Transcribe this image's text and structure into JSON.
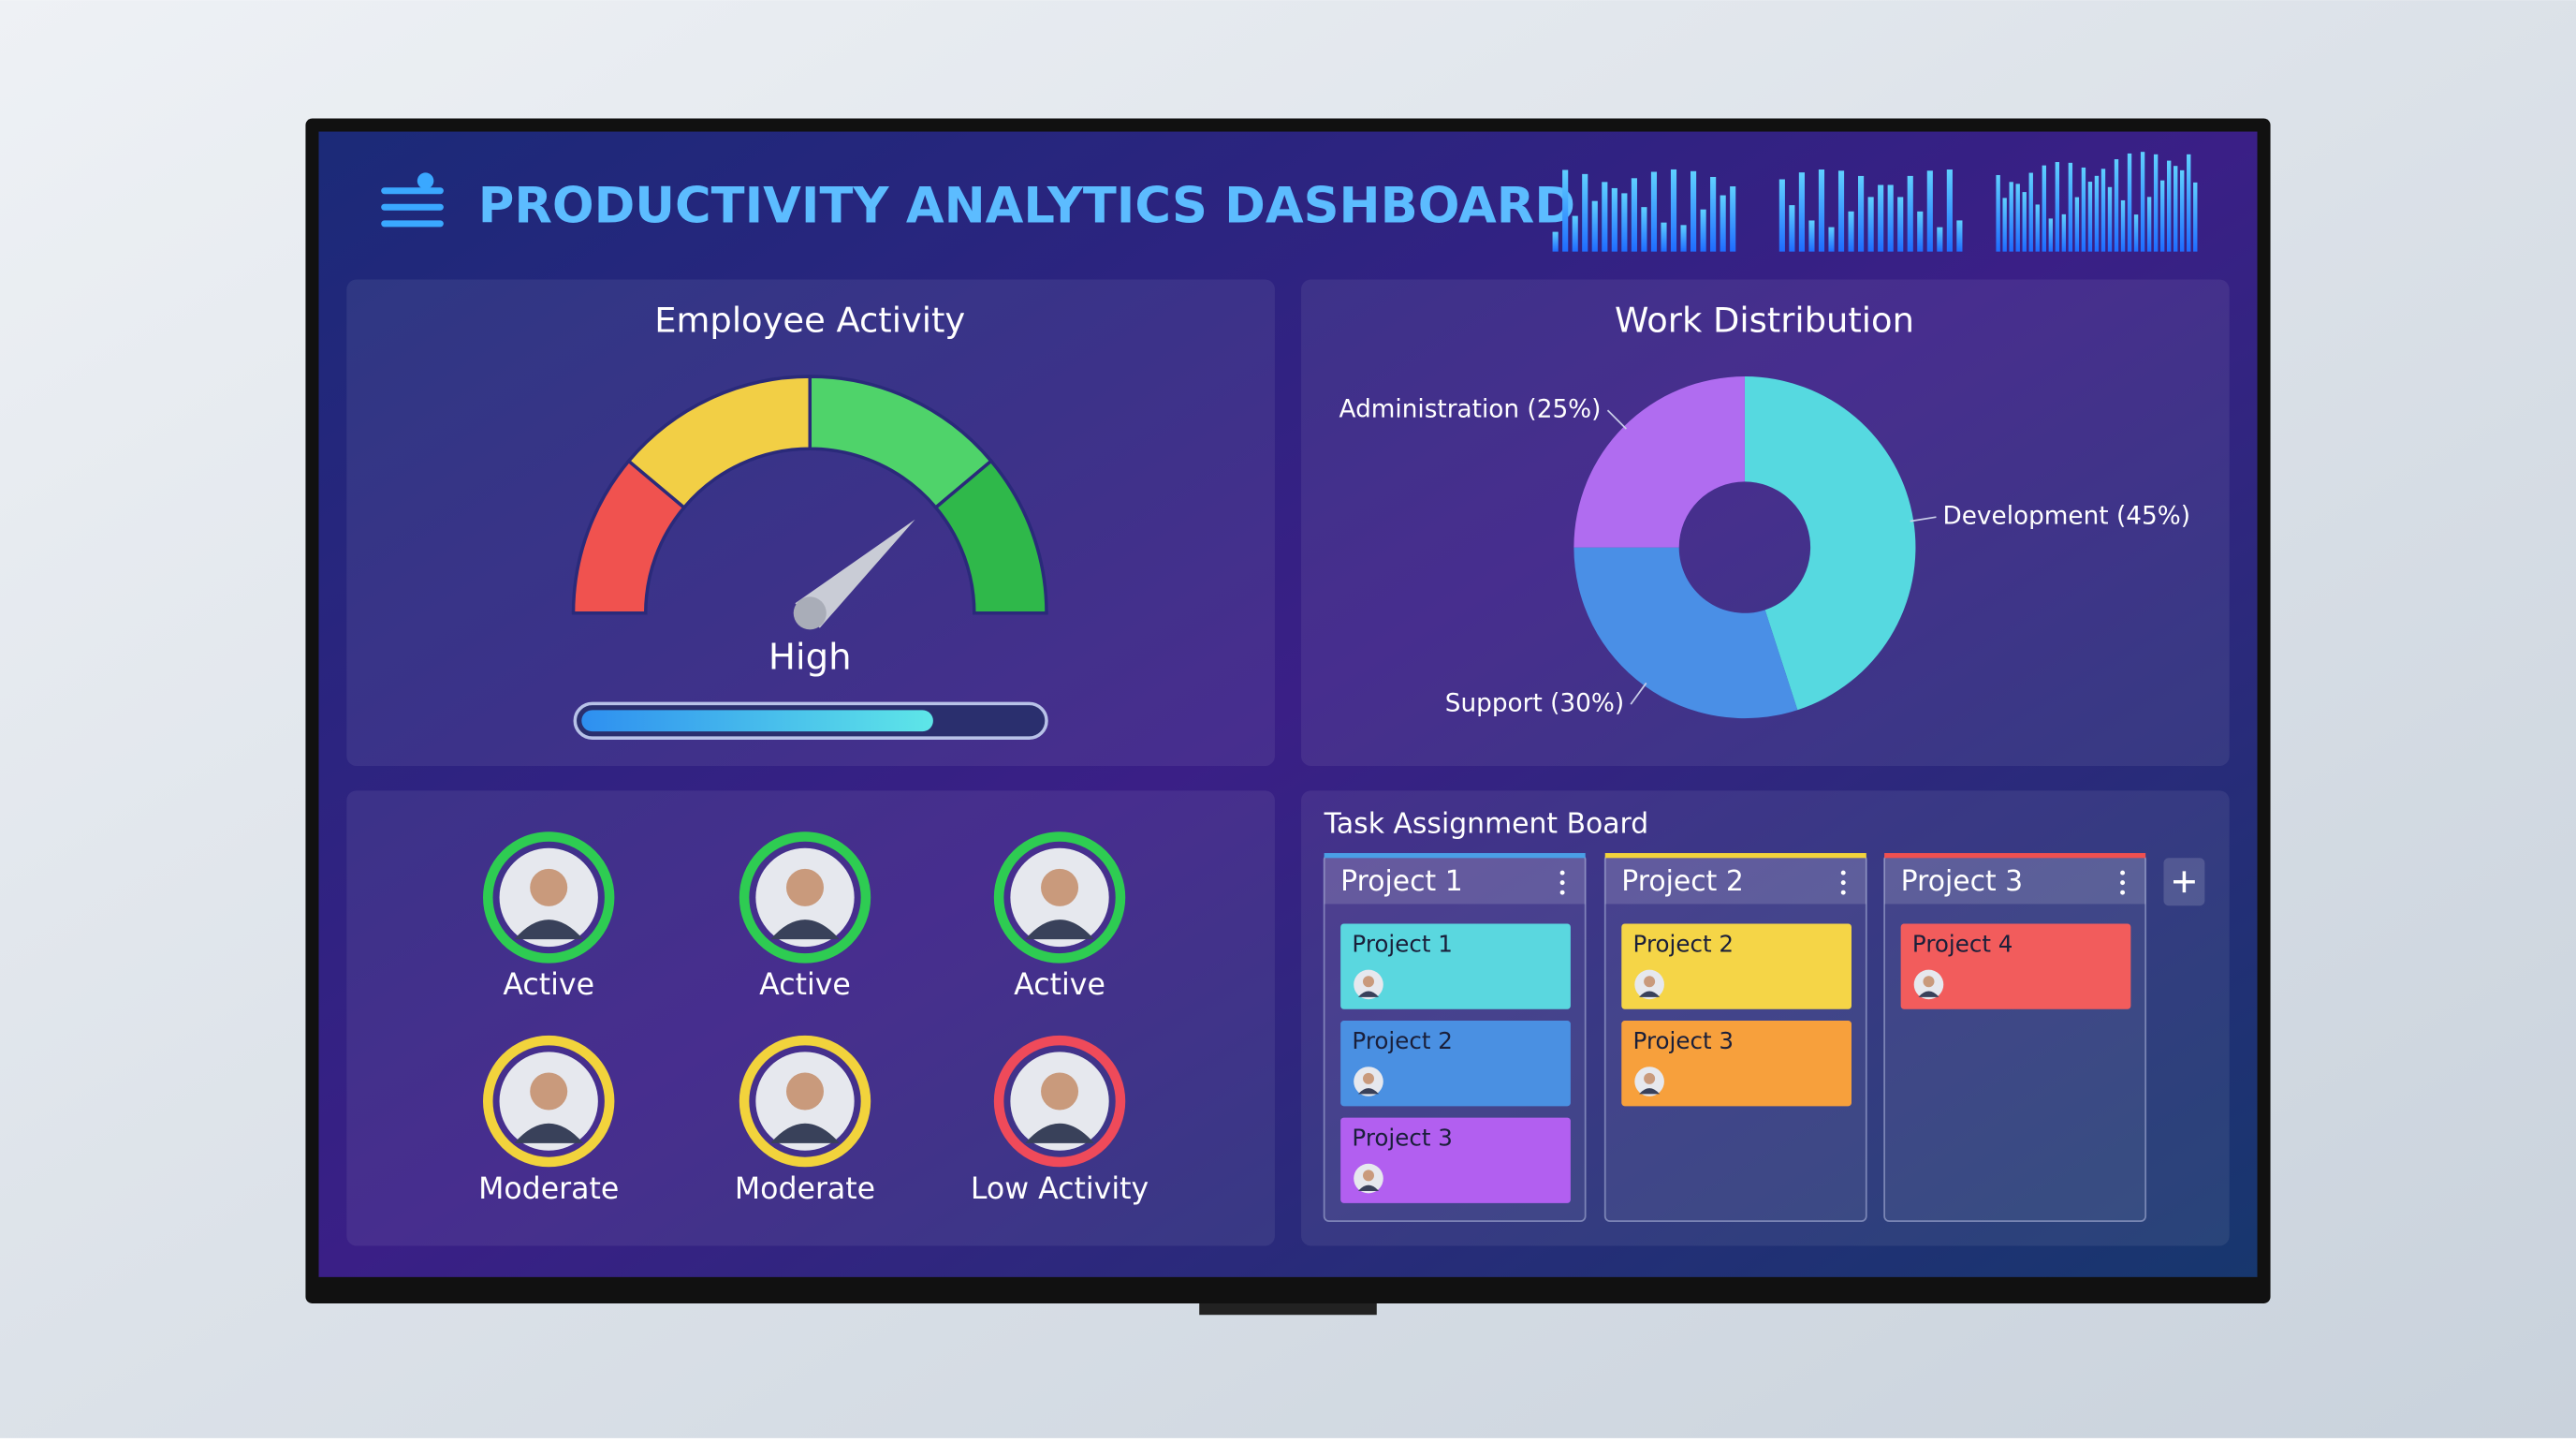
{
  "header": {
    "title": "PRODUCTIVITY ANALYTICS DASHBOARD"
  },
  "employee_activity": {
    "title": "Employee Activity",
    "level": "High"
  },
  "chart_data": {
    "type": "pie",
    "title": "Work Distribution",
    "labels": [
      "Development (45%)",
      "Support (30%)",
      "Administration (25%)"
    ],
    "values": [
      45,
      30,
      25
    ],
    "colors": [
      "#56d9e0",
      "#4a8fe6",
      "#b06cf0"
    ],
    "donut": true
  },
  "team": [
    {
      "status": "Active",
      "color": "#2ecc52"
    },
    {
      "status": "Active",
      "color": "#2ecc52"
    },
    {
      "status": "Active",
      "color": "#2ecc52"
    },
    {
      "status": "Moderate",
      "color": "#f2d33c"
    },
    {
      "status": "Moderate",
      "color": "#f2d33c"
    },
    {
      "status": "Low Activity",
      "color": "#ef4a5a"
    }
  ],
  "task_board": {
    "title": "Task Assignment Board",
    "columns": [
      {
        "title": "Project 1",
        "color": "#4a9fe6",
        "cards": [
          {
            "label": "Project 1",
            "color": "#5ad7df"
          },
          {
            "label": "Project 2",
            "color": "#4a90e2"
          },
          {
            "label": "Project 3",
            "color": "#b25ff0"
          }
        ]
      },
      {
        "title": "Project 2",
        "color": "#f2d33c",
        "cards": [
          {
            "label": "Project 2",
            "color": "#f5d547"
          },
          {
            "label": "Project 3",
            "color": "#f7a03c"
          }
        ]
      },
      {
        "title": "Project 3",
        "color": "#ef5050",
        "cards": [
          {
            "label": "Project 4",
            "color": "#f25c5c"
          }
        ]
      }
    ]
  }
}
